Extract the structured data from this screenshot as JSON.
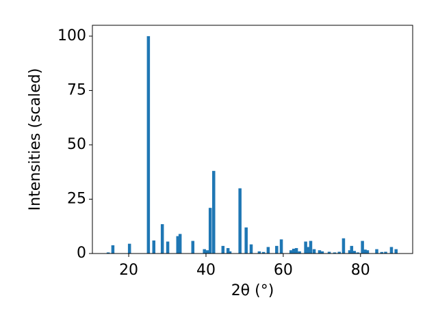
{
  "chart_data": {
    "type": "bar",
    "xlabel": "2θ (°)",
    "ylabel": "Intensities (scaled)",
    "x": [
      14.7,
      15.9,
      20.2,
      25.1,
      26.5,
      28.7,
      30.1,
      32.7,
      33.3,
      36.6,
      39.6,
      40.4,
      41.1,
      42.0,
      44.4,
      45.7,
      46.2,
      48.8,
      50.4,
      51.7,
      53.8,
      54.9,
      56.1,
      58.3,
      59.5,
      62.0,
      62.7,
      63.4,
      64.2,
      65.8,
      66.5,
      67.1,
      68.0,
      69.4,
      70.1,
      71.9,
      73.3,
      74.5,
      75.6,
      77.2,
      77.7,
      78.4,
      79.3,
      80.5,
      81.2,
      81.8,
      84.2,
      85.5,
      86.5,
      88.0,
      89.2
    ],
    "values": [
      0.5,
      3.8,
      4.5,
      100,
      6,
      13.5,
      5.5,
      8,
      9,
      5.8,
      2,
      1.5,
      21,
      38,
      3.5,
      2.5,
      1,
      30,
      12,
      4.2,
      1,
      0.7,
      3,
      3.5,
      6.5,
      1.5,
      2.2,
      2.5,
      1,
      5.5,
      3,
      5.8,
      2,
      1.5,
      1,
      0.8,
      0.5,
      0.8,
      7,
      1.5,
      3.5,
      1.2,
      0.5,
      5.8,
      1.8,
      1.5,
      2,
      0.7,
      0.8,
      3,
      2
    ],
    "color": "#1f77b4",
    "xlim": [
      10.6,
      93.5
    ],
    "xticks": [
      20,
      40,
      60,
      80
    ],
    "ylim": [
      0,
      105
    ],
    "yticks": [
      0,
      25,
      50,
      75,
      100
    ]
  }
}
